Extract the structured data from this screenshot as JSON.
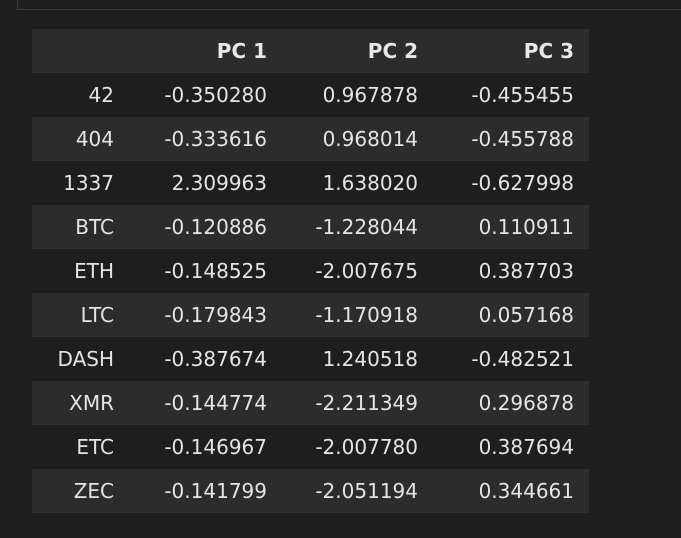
{
  "table": {
    "columns": [
      "",
      "PC 1",
      "PC 2",
      "PC 3"
    ],
    "rows": [
      {
        "index": "42",
        "values": [
          "-0.350280",
          "0.967878",
          "-0.455455"
        ]
      },
      {
        "index": "404",
        "values": [
          "-0.333616",
          "0.968014",
          "-0.455788"
        ]
      },
      {
        "index": "1337",
        "values": [
          "2.309963",
          "1.638020",
          "-0.627998"
        ]
      },
      {
        "index": "BTC",
        "values": [
          "-0.120886",
          "-1.228044",
          "0.110911"
        ]
      },
      {
        "index": "ETH",
        "values": [
          "-0.148525",
          "-2.007675",
          "0.387703"
        ]
      },
      {
        "index": "LTC",
        "values": [
          "-0.179843",
          "-1.170918",
          "0.057168"
        ]
      },
      {
        "index": "DASH",
        "values": [
          "-0.387674",
          "1.240518",
          "-0.482521"
        ]
      },
      {
        "index": "XMR",
        "values": [
          "-0.144774",
          "-2.211349",
          "0.296878"
        ]
      },
      {
        "index": "ETC",
        "values": [
          "-0.146967",
          "-2.007780",
          "0.387694"
        ]
      },
      {
        "index": "ZEC",
        "values": [
          "-0.141799",
          "-2.051194",
          "0.344661"
        ]
      }
    ]
  },
  "colors": {
    "background": "#1e1e1e",
    "row_stripe": "#2c2c2c",
    "text": "#e4e4e4"
  }
}
